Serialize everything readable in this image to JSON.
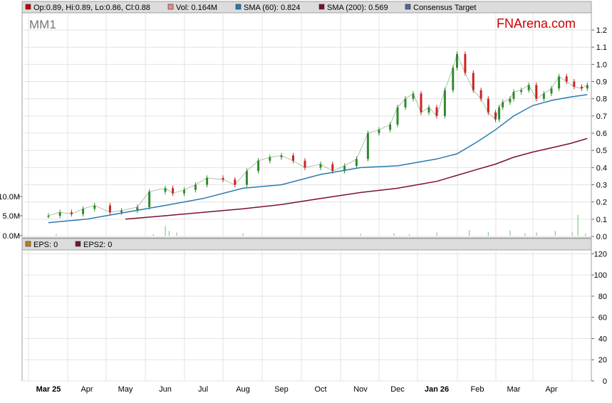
{
  "chart_data": {
    "type": "line",
    "ticker": "MM1",
    "brand": "FNArena.com",
    "price_legend": [
      {
        "label": "Op:0.89, Hi:0.89, Lo:0.86, Cl:0.88",
        "color": "#cc0000"
      },
      {
        "label": "Vol: 0.164M",
        "color": "#e88b8b"
      },
      {
        "label": "SMA (60): 0.824",
        "color": "#2a7ab0"
      },
      {
        "label": "SMA (200): 0.569",
        "color": "#7a1030"
      },
      {
        "label": "Consensus Target",
        "color": "#556699"
      }
    ],
    "eps_legend": [
      {
        "label": "EPS: 0",
        "color": "#b8860b"
      },
      {
        "label": "EPS2: 0",
        "color": "#7a1040"
      }
    ],
    "price_axis": {
      "ylim": [
        0,
        1.25
      ],
      "ticks": [
        "0.0",
        "0.1",
        "0.2",
        "0.3",
        "0.4",
        "0.5",
        "0.6",
        "0.7",
        "0.8",
        "0.9",
        "1.0",
        "1.1",
        "1.2"
      ]
    },
    "volume_axis": {
      "ticks": [
        "0.0M",
        "5.0M",
        "10.0M"
      ]
    },
    "eps_axis": {
      "ylim": [
        0,
        125
      ],
      "ticks": [
        "0",
        "20",
        "40",
        "60",
        "80",
        "100",
        "120"
      ]
    },
    "months": [
      {
        "label": "Mar 25",
        "bold": true
      },
      {
        "label": "Apr",
        "bold": false
      },
      {
        "label": "May",
        "bold": false
      },
      {
        "label": "Jun",
        "bold": false
      },
      {
        "label": "Jul",
        "bold": false
      },
      {
        "label": "Aug",
        "bold": false
      },
      {
        "label": "Sep",
        "bold": false
      },
      {
        "label": "Oct",
        "bold": false
      },
      {
        "label": "Nov",
        "bold": false
      },
      {
        "label": "Dec",
        "bold": false
      },
      {
        "label": "Jan 26",
        "bold": true
      },
      {
        "label": "Feb",
        "bold": false
      },
      {
        "label": "Mar",
        "bold": false
      },
      {
        "label": "Apr",
        "bold": false
      }
    ],
    "price_series": {
      "name": "Close",
      "t": [
        0,
        0.3,
        0.6,
        0.9,
        1.2,
        1.6,
        1.9,
        2.3,
        2.6,
        3.0,
        3.2,
        3.5,
        3.8,
        4.1,
        4.5,
        4.8,
        5.1,
        5.4,
        5.7,
        6.0,
        6.3,
        6.6,
        7.0,
        7.3,
        7.6,
        7.9,
        8.2,
        8.5,
        8.8,
        9.0,
        9.2,
        9.4,
        9.6,
        9.8,
        10.0,
        10.2,
        10.4,
        10.5,
        10.7,
        10.9,
        11.1,
        11.3,
        11.5,
        11.6,
        11.7,
        11.9,
        12.0,
        12.2,
        12.4,
        12.6,
        12.8,
        13.0,
        13.2,
        13.4,
        13.6,
        13.8,
        13.95
      ],
      "values": [
        0.12,
        0.14,
        0.13,
        0.16,
        0.18,
        0.14,
        0.15,
        0.17,
        0.26,
        0.28,
        0.25,
        0.27,
        0.3,
        0.34,
        0.33,
        0.3,
        0.38,
        0.44,
        0.46,
        0.47,
        0.44,
        0.4,
        0.42,
        0.38,
        0.41,
        0.45,
        0.6,
        0.62,
        0.65,
        0.75,
        0.8,
        0.83,
        0.72,
        0.75,
        0.7,
        0.85,
        0.98,
        1.06,
        0.95,
        0.85,
        0.8,
        0.72,
        0.68,
        0.75,
        0.78,
        0.8,
        0.84,
        0.85,
        0.88,
        0.8,
        0.83,
        0.86,
        0.93,
        0.9,
        0.87,
        0.86,
        0.88
      ]
    },
    "sma60": {
      "name": "SMA (60)",
      "t": [
        0,
        1,
        2,
        3,
        4,
        5,
        6,
        7,
        8,
        9,
        10,
        10.5,
        11,
        11.5,
        12,
        12.5,
        13,
        13.5,
        13.95
      ],
      "values": [
        0.08,
        0.1,
        0.14,
        0.18,
        0.22,
        0.28,
        0.3,
        0.36,
        0.4,
        0.41,
        0.45,
        0.48,
        0.55,
        0.62,
        0.7,
        0.76,
        0.79,
        0.81,
        0.824
      ]
    },
    "sma200": {
      "name": "SMA (200)",
      "t": [
        2.0,
        3,
        4,
        5,
        6,
        7,
        8,
        9,
        10,
        11,
        11.5,
        12,
        12.5,
        13,
        13.5,
        13.95
      ],
      "values": [
        0.1,
        0.12,
        0.14,
        0.16,
        0.185,
        0.22,
        0.255,
        0.28,
        0.32,
        0.39,
        0.42,
        0.46,
        0.49,
        0.515,
        0.54,
        0.569
      ]
    },
    "volume": {
      "t": [
        0.2,
        2.7,
        3.0,
        3.1,
        3.3,
        5.0,
        8.0,
        8.9,
        9.3,
        10.0,
        10.8,
        11.3,
        11.9,
        12.3,
        12.6,
        13.1,
        13.55,
        13.7,
        13.9
      ],
      "values": [
        0.4,
        0.4,
        2.5,
        1.2,
        0.8,
        0.6,
        0.5,
        0.6,
        0.4,
        0.8,
        1.4,
        0.9,
        1.3,
        0.6,
        0.8,
        1.2,
        0.8,
        5.3,
        0.6
      ]
    }
  }
}
